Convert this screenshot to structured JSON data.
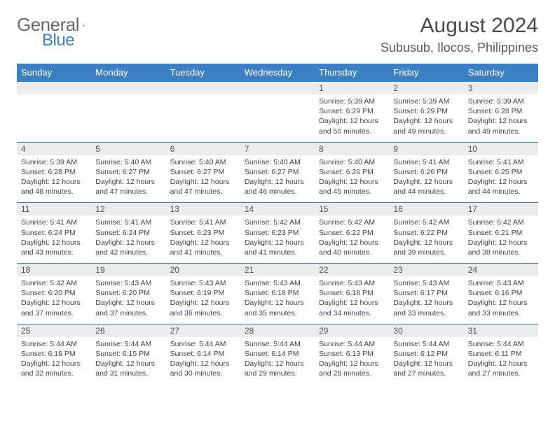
{
  "logo": {
    "text1": "General",
    "text2": "Blue"
  },
  "title": "August 2024",
  "location": "Subusub, Ilocos, Philippines",
  "colors": {
    "brand": "#3b7fc4",
    "headerBg": "#3b7fc4",
    "dateBg": "#ececec",
    "text": "#444444"
  },
  "dayNames": [
    "Sunday",
    "Monday",
    "Tuesday",
    "Wednesday",
    "Thursday",
    "Friday",
    "Saturday"
  ],
  "weeks": [
    [
      {
        "n": "",
        "sr": "",
        "ss": "",
        "d1": "",
        "d2": ""
      },
      {
        "n": "",
        "sr": "",
        "ss": "",
        "d1": "",
        "d2": ""
      },
      {
        "n": "",
        "sr": "",
        "ss": "",
        "d1": "",
        "d2": ""
      },
      {
        "n": "",
        "sr": "",
        "ss": "",
        "d1": "",
        "d2": ""
      },
      {
        "n": "1",
        "sr": "Sunrise: 5:39 AM",
        "ss": "Sunset: 6:29 PM",
        "d1": "Daylight: 12 hours",
        "d2": "and 50 minutes."
      },
      {
        "n": "2",
        "sr": "Sunrise: 5:39 AM",
        "ss": "Sunset: 6:29 PM",
        "d1": "Daylight: 12 hours",
        "d2": "and 49 minutes."
      },
      {
        "n": "3",
        "sr": "Sunrise: 5:39 AM",
        "ss": "Sunset: 6:28 PM",
        "d1": "Daylight: 12 hours",
        "d2": "and 49 minutes."
      }
    ],
    [
      {
        "n": "4",
        "sr": "Sunrise: 5:39 AM",
        "ss": "Sunset: 6:28 PM",
        "d1": "Daylight: 12 hours",
        "d2": "and 48 minutes."
      },
      {
        "n": "5",
        "sr": "Sunrise: 5:40 AM",
        "ss": "Sunset: 6:27 PM",
        "d1": "Daylight: 12 hours",
        "d2": "and 47 minutes."
      },
      {
        "n": "6",
        "sr": "Sunrise: 5:40 AM",
        "ss": "Sunset: 6:27 PM",
        "d1": "Daylight: 12 hours",
        "d2": "and 47 minutes."
      },
      {
        "n": "7",
        "sr": "Sunrise: 5:40 AM",
        "ss": "Sunset: 6:27 PM",
        "d1": "Daylight: 12 hours",
        "d2": "and 46 minutes."
      },
      {
        "n": "8",
        "sr": "Sunrise: 5:40 AM",
        "ss": "Sunset: 6:26 PM",
        "d1": "Daylight: 12 hours",
        "d2": "and 45 minutes."
      },
      {
        "n": "9",
        "sr": "Sunrise: 5:41 AM",
        "ss": "Sunset: 6:26 PM",
        "d1": "Daylight: 12 hours",
        "d2": "and 44 minutes."
      },
      {
        "n": "10",
        "sr": "Sunrise: 5:41 AM",
        "ss": "Sunset: 6:25 PM",
        "d1": "Daylight: 12 hours",
        "d2": "and 44 minutes."
      }
    ],
    [
      {
        "n": "11",
        "sr": "Sunrise: 5:41 AM",
        "ss": "Sunset: 6:24 PM",
        "d1": "Daylight: 12 hours",
        "d2": "and 43 minutes."
      },
      {
        "n": "12",
        "sr": "Sunrise: 5:41 AM",
        "ss": "Sunset: 6:24 PM",
        "d1": "Daylight: 12 hours",
        "d2": "and 42 minutes."
      },
      {
        "n": "13",
        "sr": "Sunrise: 5:41 AM",
        "ss": "Sunset: 6:23 PM",
        "d1": "Daylight: 12 hours",
        "d2": "and 41 minutes."
      },
      {
        "n": "14",
        "sr": "Sunrise: 5:42 AM",
        "ss": "Sunset: 6:23 PM",
        "d1": "Daylight: 12 hours",
        "d2": "and 41 minutes."
      },
      {
        "n": "15",
        "sr": "Sunrise: 5:42 AM",
        "ss": "Sunset: 6:22 PM",
        "d1": "Daylight: 12 hours",
        "d2": "and 40 minutes."
      },
      {
        "n": "16",
        "sr": "Sunrise: 5:42 AM",
        "ss": "Sunset: 6:22 PM",
        "d1": "Daylight: 12 hours",
        "d2": "and 39 minutes."
      },
      {
        "n": "17",
        "sr": "Sunrise: 5:42 AM",
        "ss": "Sunset: 6:21 PM",
        "d1": "Daylight: 12 hours",
        "d2": "and 38 minutes."
      }
    ],
    [
      {
        "n": "18",
        "sr": "Sunrise: 5:42 AM",
        "ss": "Sunset: 6:20 PM",
        "d1": "Daylight: 12 hours",
        "d2": "and 37 minutes."
      },
      {
        "n": "19",
        "sr": "Sunrise: 5:43 AM",
        "ss": "Sunset: 6:20 PM",
        "d1": "Daylight: 12 hours",
        "d2": "and 37 minutes."
      },
      {
        "n": "20",
        "sr": "Sunrise: 5:43 AM",
        "ss": "Sunset: 6:19 PM",
        "d1": "Daylight: 12 hours",
        "d2": "and 36 minutes."
      },
      {
        "n": "21",
        "sr": "Sunrise: 5:43 AM",
        "ss": "Sunset: 6:18 PM",
        "d1": "Daylight: 12 hours",
        "d2": "and 35 minutes."
      },
      {
        "n": "22",
        "sr": "Sunrise: 5:43 AM",
        "ss": "Sunset: 6:18 PM",
        "d1": "Daylight: 12 hours",
        "d2": "and 34 minutes."
      },
      {
        "n": "23",
        "sr": "Sunrise: 5:43 AM",
        "ss": "Sunset: 6:17 PM",
        "d1": "Daylight: 12 hours",
        "d2": "and 33 minutes."
      },
      {
        "n": "24",
        "sr": "Sunrise: 5:43 AM",
        "ss": "Sunset: 6:16 PM",
        "d1": "Daylight: 12 hours",
        "d2": "and 33 minutes."
      }
    ],
    [
      {
        "n": "25",
        "sr": "Sunrise: 5:44 AM",
        "ss": "Sunset: 6:16 PM",
        "d1": "Daylight: 12 hours",
        "d2": "and 32 minutes."
      },
      {
        "n": "26",
        "sr": "Sunrise: 5:44 AM",
        "ss": "Sunset: 6:15 PM",
        "d1": "Daylight: 12 hours",
        "d2": "and 31 minutes."
      },
      {
        "n": "27",
        "sr": "Sunrise: 5:44 AM",
        "ss": "Sunset: 6:14 PM",
        "d1": "Daylight: 12 hours",
        "d2": "and 30 minutes."
      },
      {
        "n": "28",
        "sr": "Sunrise: 5:44 AM",
        "ss": "Sunset: 6:14 PM",
        "d1": "Daylight: 12 hours",
        "d2": "and 29 minutes."
      },
      {
        "n": "29",
        "sr": "Sunrise: 5:44 AM",
        "ss": "Sunset: 6:13 PM",
        "d1": "Daylight: 12 hours",
        "d2": "and 28 minutes."
      },
      {
        "n": "30",
        "sr": "Sunrise: 5:44 AM",
        "ss": "Sunset: 6:12 PM",
        "d1": "Daylight: 12 hours",
        "d2": "and 27 minutes."
      },
      {
        "n": "31",
        "sr": "Sunrise: 5:44 AM",
        "ss": "Sunset: 6:11 PM",
        "d1": "Daylight: 12 hours",
        "d2": "and 27 minutes."
      }
    ]
  ]
}
